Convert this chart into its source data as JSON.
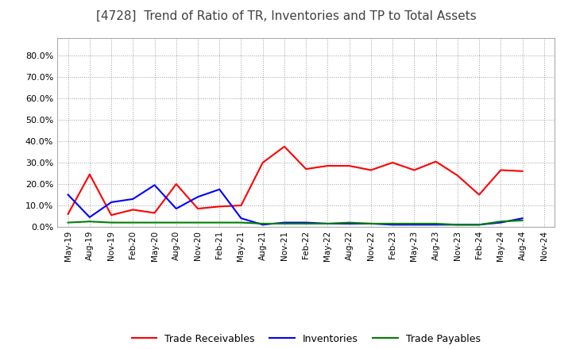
{
  "title": "[4728]  Trend of Ratio of TR, Inventories and TP to Total Assets",
  "x_labels": [
    "May-19",
    "Aug-19",
    "Nov-19",
    "Feb-20",
    "May-20",
    "Aug-20",
    "Nov-20",
    "Feb-21",
    "May-21",
    "Aug-21",
    "Nov-21",
    "Feb-22",
    "May-22",
    "Aug-22",
    "Nov-22",
    "Feb-23",
    "May-23",
    "Aug-23",
    "Nov-23",
    "Feb-24",
    "May-24",
    "Aug-24",
    "Nov-24"
  ],
  "trade_receivables": [
    0.06,
    0.245,
    0.055,
    0.08,
    0.065,
    0.2,
    0.085,
    0.095,
    0.1,
    0.3,
    0.375,
    0.27,
    0.285,
    0.285,
    0.265,
    0.3,
    0.265,
    0.305,
    0.24,
    0.15,
    0.265,
    0.26,
    null
  ],
  "inventories": [
    0.15,
    0.045,
    0.115,
    0.13,
    0.195,
    0.085,
    0.14,
    0.175,
    0.04,
    0.01,
    0.02,
    0.02,
    0.015,
    0.015,
    0.015,
    0.01,
    0.01,
    0.01,
    0.01,
    0.01,
    0.02,
    0.04,
    null
  ],
  "trade_payables": [
    0.02,
    0.025,
    0.02,
    0.02,
    0.02,
    0.02,
    0.02,
    0.02,
    0.02,
    0.015,
    0.015,
    0.015,
    0.015,
    0.02,
    0.015,
    0.015,
    0.015,
    0.015,
    0.01,
    0.01,
    0.025,
    0.03,
    null
  ],
  "tr_color": "#ff0000",
  "inv_color": "#0000ff",
  "tp_color": "#008000",
  "ylim": [
    0.0,
    0.88
  ],
  "yticks": [
    0.0,
    0.1,
    0.2,
    0.3,
    0.4,
    0.5,
    0.6,
    0.7,
    0.8
  ],
  "ytick_labels": [
    "0.0%",
    "10.0%",
    "20.0%",
    "30.0%",
    "40.0%",
    "50.0%",
    "60.0%",
    "70.0%",
    "80.0%"
  ],
  "legend_labels": [
    "Trade Receivables",
    "Inventories",
    "Trade Payables"
  ],
  "bg_color": "#ffffff",
  "plot_bg_color": "#ffffff"
}
